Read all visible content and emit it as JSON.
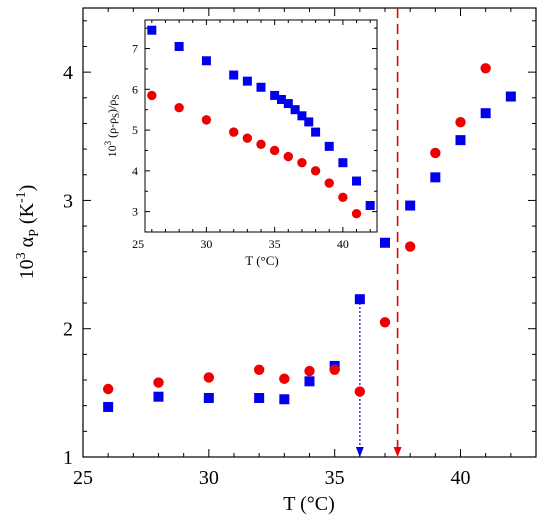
{
  "chart_data": [
    {
      "type": "scatter",
      "role": "main",
      "xlabel": "T (°C)",
      "ylabel": "10³ α_P (K⁻¹)",
      "ylabel_parts": {
        "prefix": "10",
        "exp": "3",
        "sym": "α",
        "sub": "P",
        "unit_open": " (K",
        "unit_exp": "-1",
        "unit_close": ")"
      },
      "xlim": [
        25,
        43
      ],
      "ylim": [
        1,
        4.5
      ],
      "xticks": [
        25,
        30,
        35,
        40
      ],
      "yticks": [
        1,
        2,
        3,
        4
      ],
      "xtick_labels": [
        "25",
        "30",
        "35",
        "40"
      ],
      "ytick_labels": [
        "1",
        "2",
        "3",
        "4"
      ],
      "grid": false,
      "series": [
        {
          "marker": "square",
          "color": "#0000ee",
          "x": [
            26,
            28,
            30,
            32,
            33,
            34,
            35,
            36,
            37,
            38,
            39,
            40,
            41,
            42
          ],
          "y": [
            1.39,
            1.47,
            1.46,
            1.46,
            1.45,
            1.59,
            1.71,
            2.23,
            2.67,
            2.96,
            3.18,
            3.47,
            3.68,
            3.81
          ]
        },
        {
          "marker": "circle",
          "color": "#ee0000",
          "x": [
            26,
            28,
            30,
            32,
            33,
            34,
            35,
            36,
            37,
            38,
            39,
            40,
            41
          ],
          "y": [
            1.53,
            1.58,
            1.62,
            1.68,
            1.61,
            1.67,
            1.68,
            1.51,
            2.05,
            2.64,
            3.37,
            3.61,
            4.03
          ]
        }
      ],
      "annotations": [
        {
          "type": "dotted-vertical-line-arrow",
          "x": 36,
          "y_from": 2.23,
          "y_to": 1.0,
          "color": "#0000ee"
        },
        {
          "type": "dashed-vertical-line-arrow",
          "x": 37.5,
          "y_from": 4.5,
          "y_to": 1.0,
          "color": "#ee0000"
        }
      ]
    },
    {
      "type": "scatter",
      "role": "inset",
      "xlabel": "T (°C)",
      "ylabel": "10³ (ρ-ρS)/ρS",
      "ylabel_parts": {
        "prefix": "10",
        "exp": "3",
        "body": " (ρ-ρ",
        "sub1": "S",
        "mid": ")/ρ",
        "sub2": "S"
      },
      "xlim": [
        25.5,
        42.5
      ],
      "ylim": [
        2.5,
        7.7
      ],
      "xticks": [
        25,
        30,
        35,
        40
      ],
      "yticks": [
        3,
        4,
        5,
        6,
        7
      ],
      "xtick_labels": [
        "25",
        "30",
        "35",
        "40"
      ],
      "ytick_labels": [
        "3",
        "4",
        "5",
        "6",
        "7"
      ],
      "grid": false,
      "series": [
        {
          "marker": "square",
          "color": "#0000ee",
          "x": [
            26,
            28,
            30,
            32,
            33,
            34,
            35,
            35.5,
            36,
            36.5,
            37,
            37.5,
            38,
            39,
            40,
            41,
            42
          ],
          "y": [
            7.45,
            7.05,
            6.7,
            6.35,
            6.2,
            6.05,
            5.85,
            5.75,
            5.65,
            5.5,
            5.35,
            5.2,
            4.95,
            4.6,
            4.2,
            3.75,
            3.15
          ]
        },
        {
          "marker": "circle",
          "color": "#ee0000",
          "x": [
            26,
            28,
            30,
            32,
            33,
            34,
            35,
            36,
            37,
            38,
            39,
            40,
            41
          ],
          "y": [
            5.85,
            5.55,
            5.25,
            4.95,
            4.8,
            4.65,
            4.5,
            4.35,
            4.2,
            4.0,
            3.7,
            3.35,
            2.95
          ]
        }
      ]
    }
  ]
}
